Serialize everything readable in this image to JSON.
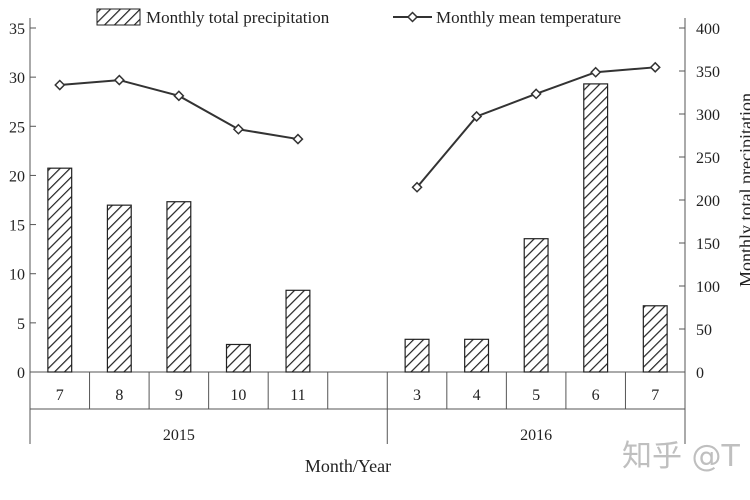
{
  "chart_data": {
    "type": "bar-line",
    "categories": [
      "7",
      "8",
      "9",
      "10",
      "11",
      "",
      "3",
      "4",
      "5",
      "6",
      "7"
    ],
    "groups": [
      {
        "label": "2015",
        "from": 0,
        "to": 4
      },
      {
        "label": "2016",
        "from": 6,
        "to": 10
      }
    ],
    "series": [
      {
        "name": "Monthly total precipitation",
        "type": "bar",
        "axis": "right",
        "pattern": "diagonal-hatch",
        "values": [
          237,
          194,
          198,
          32,
          95,
          null,
          38,
          38,
          155,
          335,
          77
        ]
      },
      {
        "name": "Monthly mean temperature",
        "type": "line",
        "axis": "left",
        "marker": "diamond",
        "values": [
          29.2,
          29.7,
          28.1,
          24.7,
          23.7,
          null,
          18.8,
          26.0,
          28.3,
          30.5,
          31.0
        ]
      }
    ],
    "left_axis": {
      "min": 0,
      "max": 35,
      "ticks": [
        "0",
        "5",
        "10",
        "15",
        "20",
        "25",
        "30",
        "35"
      ],
      "label": ""
    },
    "right_axis": {
      "min": 0,
      "max": 400,
      "ticks": [
        "0",
        "50",
        "100",
        "150",
        "200",
        "250",
        "300",
        "350",
        "400"
      ],
      "label": "Monthly total precipitation"
    },
    "xlabel": "Month/Year",
    "legend_position": "top",
    "grid": false,
    "colors": {
      "line": "#333333",
      "bar_stroke": "#222222",
      "axis": "#555555"
    }
  },
  "watermark": "知乎 @T"
}
